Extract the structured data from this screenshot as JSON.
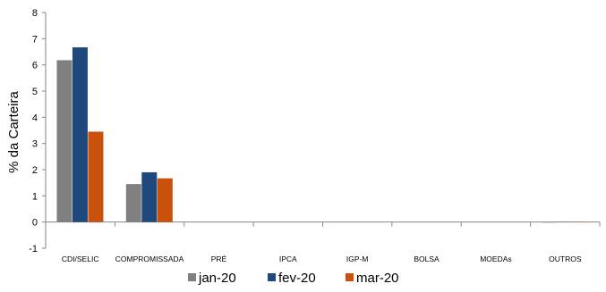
{
  "chart_data": {
    "type": "bar",
    "title": "",
    "xlabel": "",
    "ylabel": "% da Carteira",
    "ylim": [
      -1,
      8
    ],
    "yticks": [
      -1,
      0,
      1,
      2,
      3,
      4,
      5,
      6,
      7,
      8
    ],
    "grid": false,
    "legend_position": "bottom",
    "categories": [
      "CDI/SELIC",
      "COMPROMISSADA",
      "PRÉ",
      "IPCA",
      "IGP-M",
      "BOLSA",
      "MOEDAs",
      "OUTROS"
    ],
    "series": [
      {
        "name": "jan-20",
        "color": "#808080",
        "values": [
          6.18,
          1.45,
          0,
          0,
          0,
          0,
          0,
          -0.02
        ]
      },
      {
        "name": "fev-20",
        "color": "#1f497d",
        "values": [
          6.67,
          1.9,
          0,
          0,
          0,
          0,
          0,
          -0.01
        ]
      },
      {
        "name": "mar-20",
        "color": "#c9510c",
        "values": [
          3.45,
          1.67,
          0,
          0,
          0,
          0,
          0,
          -0.01
        ]
      }
    ]
  }
}
